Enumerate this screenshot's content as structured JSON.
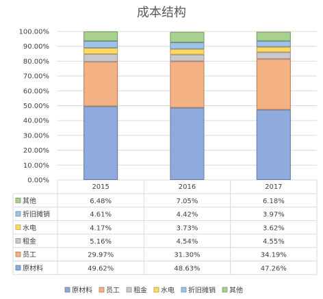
{
  "chart_data": {
    "type": "bar",
    "stacked": true,
    "title": "成本结构",
    "categories": [
      "2015",
      "2016",
      "2017"
    ],
    "ylim": [
      0,
      100
    ],
    "ytick_labels": [
      "0.00%",
      "10.00%",
      "20.00%",
      "30.00%",
      "40.00%",
      "50.00%",
      "60.00%",
      "70.00%",
      "80.00%",
      "90.00%",
      "100.00%"
    ],
    "grid": true,
    "legend_position": "bottom",
    "data_table": true,
    "series": [
      {
        "name": "原材料",
        "color": "#8FAADC",
        "values": [
          49.62,
          48.63,
          47.26
        ],
        "labels": [
          "49.62%",
          "48.63%",
          "47.26%"
        ]
      },
      {
        "name": "员工",
        "color": "#F4B183",
        "values": [
          29.97,
          31.3,
          34.19
        ],
        "labels": [
          "29.97%",
          "31.30%",
          "34.19%"
        ]
      },
      {
        "name": "租金",
        "color": "#C9C9C9",
        "values": [
          5.16,
          4.54,
          4.55
        ],
        "labels": [
          "5.16%",
          "4.54%",
          "4.55%"
        ]
      },
      {
        "name": "水电",
        "color": "#FFD966",
        "values": [
          4.17,
          3.73,
          3.62
        ],
        "labels": [
          "4.17%",
          "3.73%",
          "3.62%"
        ]
      },
      {
        "name": "折旧摊销",
        "color": "#9DC3E6",
        "values": [
          4.61,
          4.42,
          3.97
        ],
        "labels": [
          "4.61%",
          "4.42%",
          "3.97%"
        ]
      },
      {
        "name": "其他",
        "color": "#A9D18E",
        "values": [
          6.48,
          7.05,
          6.18
        ],
        "labels": [
          "6.48%",
          "7.05%",
          "6.18%"
        ]
      }
    ]
  }
}
